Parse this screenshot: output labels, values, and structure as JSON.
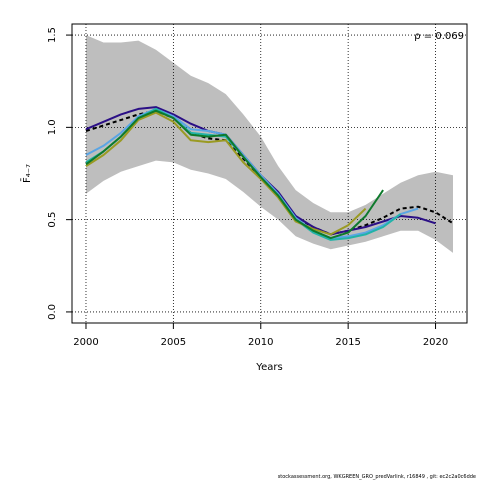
{
  "chart_data": {
    "type": "line",
    "ylabel": "F̄₄₋₇",
    "xlabel": "Years",
    "xlim": [
      1999.2,
      2021.8
    ],
    "ylim": [
      -0.06,
      1.56
    ],
    "x_ticks": [
      2000,
      2005,
      2010,
      2015,
      2020
    ],
    "y_ticks": [
      0.0,
      0.5,
      1.0,
      1.5
    ],
    "grid": "dotted",
    "annotation": "ρ = 0.069",
    "confidence_band": {
      "x": [
        2000,
        2001,
        2002,
        2003,
        2004,
        2005,
        2006,
        2007,
        2008,
        2009,
        2010,
        2011,
        2012,
        2013,
        2014,
        2015,
        2016,
        2017,
        2018,
        2019,
        2020,
        2021
      ],
      "upper": [
        1.5,
        1.46,
        1.46,
        1.47,
        1.42,
        1.35,
        1.28,
        1.24,
        1.18,
        1.07,
        0.95,
        0.79,
        0.66,
        0.59,
        0.54,
        0.54,
        0.58,
        0.64,
        0.7,
        0.74,
        0.76,
        0.74
      ],
      "lower": [
        0.64,
        0.71,
        0.76,
        0.79,
        0.82,
        0.81,
        0.77,
        0.75,
        0.72,
        0.65,
        0.57,
        0.5,
        0.41,
        0.37,
        0.34,
        0.36,
        0.38,
        0.41,
        0.44,
        0.44,
        0.39,
        0.32
      ]
    },
    "series": [
      {
        "color": "#000000",
        "dashed": true,
        "x": [
          2000,
          2001,
          2002,
          2003,
          2004,
          2005,
          2006,
          2007,
          2008,
          2009,
          2010,
          2011,
          2012,
          2013,
          2014,
          2015,
          2016,
          2017,
          2018,
          2019,
          2020,
          2021
        ],
        "values": [
          0.98,
          1.01,
          1.04,
          1.07,
          1.09,
          1.05,
          0.97,
          0.94,
          0.93,
          0.83,
          0.73,
          0.64,
          0.51,
          0.46,
          0.42,
          0.44,
          0.47,
          0.51,
          0.56,
          0.57,
          0.54,
          0.48
        ]
      },
      {
        "color": "#2b0f86",
        "dashed": false,
        "x": [
          2000,
          2001,
          2002,
          2003,
          2004,
          2005,
          2006,
          2007,
          2008,
          2009,
          2010,
          2011,
          2012,
          2013,
          2014,
          2015,
          2016,
          2017,
          2018,
          2019,
          2020
        ],
        "values": [
          0.99,
          1.03,
          1.07,
          1.1,
          1.11,
          1.07,
          1.02,
          0.98,
          0.96,
          0.85,
          0.74,
          0.65,
          0.52,
          0.46,
          0.42,
          0.44,
          0.46,
          0.49,
          0.52,
          0.51,
          0.48
        ]
      },
      {
        "color": "#5aa5e4",
        "dashed": false,
        "x": [
          2000,
          2001,
          2002,
          2003,
          2004,
          2005,
          2006,
          2007,
          2008,
          2009,
          2010,
          2011,
          2012,
          2013,
          2014,
          2015,
          2016,
          2017,
          2018,
          2019
        ],
        "values": [
          0.85,
          0.9,
          0.97,
          1.06,
          1.1,
          1.06,
          0.99,
          0.98,
          0.96,
          0.85,
          0.74,
          0.64,
          0.51,
          0.44,
          0.4,
          0.41,
          0.43,
          0.47,
          0.53,
          0.56
        ]
      },
      {
        "color": "#22b3a8",
        "dashed": false,
        "x": [
          2000,
          2001,
          2002,
          2003,
          2004,
          2005,
          2006,
          2007,
          2008,
          2009,
          2010,
          2011,
          2012,
          2013,
          2014,
          2015,
          2016,
          2017,
          2018
        ],
        "values": [
          0.81,
          0.87,
          0.95,
          1.05,
          1.1,
          1.05,
          0.97,
          0.96,
          0.95,
          0.84,
          0.73,
          0.63,
          0.5,
          0.43,
          0.39,
          0.4,
          0.42,
          0.46,
          0.53
        ]
      },
      {
        "color": "#9a9a22",
        "dashed": false,
        "x": [
          2000,
          2001,
          2002,
          2003,
          2004,
          2005,
          2006,
          2007,
          2008,
          2009,
          2010,
          2011,
          2012,
          2013,
          2014,
          2015,
          2016
        ],
        "values": [
          0.79,
          0.85,
          0.93,
          1.04,
          1.08,
          1.03,
          0.93,
          0.92,
          0.93,
          0.81,
          0.72,
          0.62,
          0.49,
          0.45,
          0.42,
          0.47,
          0.56
        ]
      },
      {
        "color": "#0e7a2c",
        "dashed": false,
        "x": [
          2000,
          2001,
          2002,
          2003,
          2004,
          2005,
          2006,
          2007,
          2008,
          2009,
          2010,
          2011,
          2012,
          2013,
          2014,
          2015,
          2016,
          2017
        ],
        "values": [
          0.8,
          0.87,
          0.95,
          1.05,
          1.09,
          1.05,
          0.96,
          0.95,
          0.96,
          0.84,
          0.73,
          0.63,
          0.5,
          0.44,
          0.4,
          0.43,
          0.52,
          0.66
        ]
      }
    ]
  },
  "footer": {
    "text": "stockassessment.org,  WKGREEN_GRO_predVarlink,  r16849 ,  git:  ec2c2a0c6dde"
  }
}
